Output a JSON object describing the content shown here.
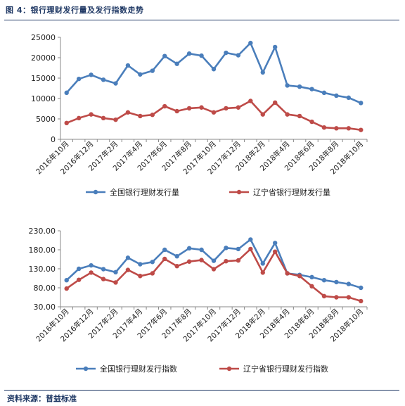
{
  "caption": "图 4：银行理财发行量及发行指数走势",
  "source": "资料来源：普益标准",
  "colors": {
    "series1": "#4a7ebb",
    "series2": "#be4b48",
    "axis": "#888888"
  },
  "chart_data": [
    {
      "type": "line",
      "categories": [
        "2016年10月",
        "2016年11月",
        "2016年12月",
        "2017年1月",
        "2017年2月",
        "2017年3月",
        "2017年4月",
        "2017年5月",
        "2017年6月",
        "2017年7月",
        "2017年8月",
        "2017年9月",
        "2017年10月",
        "2017年11月",
        "2017年12月",
        "2018年1月",
        "2018年2月",
        "2018年3月",
        "2018年4月",
        "2018年5月",
        "2018年6月",
        "2018年7月",
        "2018年8月",
        "2018年9月",
        "2018年10月"
      ],
      "tick_labels": [
        "2016年10月",
        "2016年12月",
        "2017年2月",
        "2017年4月",
        "2017年6月",
        "2017年8月",
        "2017年10月",
        "2017年12月",
        "2018年2月",
        "2018年4月",
        "2018年6月",
        "2018年8月",
        "2018年10月"
      ],
      "y_ticks": [
        "0",
        "5000",
        "10000",
        "15000",
        "20000",
        "25000"
      ],
      "ylim": [
        0,
        25000
      ],
      "grid": false,
      "legend": "bottom",
      "series": [
        {
          "name": "全国银行理财发行量",
          "values": [
            11400,
            14800,
            15800,
            14600,
            13700,
            18100,
            15900,
            16800,
            20400,
            18500,
            21000,
            20500,
            17200,
            21200,
            20600,
            23600,
            16400,
            22600,
            13200,
            12900,
            12300,
            11400,
            10700,
            10200,
            8900
          ]
        },
        {
          "name": "辽宁省银行理财发行量",
          "values": [
            4000,
            5200,
            6100,
            5200,
            4800,
            6600,
            5700,
            6000,
            8100,
            6900,
            7600,
            7800,
            6600,
            7600,
            7800,
            9400,
            6100,
            9000,
            6100,
            5700,
            4300,
            2900,
            2700,
            2700,
            2300
          ]
        }
      ]
    },
    {
      "type": "line",
      "categories": [
        "2016年10月",
        "2016年11月",
        "2016年12月",
        "2017年1月",
        "2017年2月",
        "2017年3月",
        "2017年4月",
        "2017年5月",
        "2017年6月",
        "2017年7月",
        "2017年8月",
        "2017年9月",
        "2017年10月",
        "2017年11月",
        "2017年12月",
        "2018年1月",
        "2018年2月",
        "2018年3月",
        "2018年4月",
        "2018年5月",
        "2018年6月",
        "2018年7月",
        "2018年8月",
        "2018年9月",
        "2018年10月"
      ],
      "tick_labels": [
        "2016年10月",
        "2016年12月",
        "2017年2月",
        "2017年4月",
        "2017年6月",
        "2017年8月",
        "2017年10月",
        "2017年12月",
        "2018年2月",
        "2018年4月",
        "2018年6月",
        "2018年8月",
        "2018年10月"
      ],
      "y_ticks": [
        "30.00",
        "80.00",
        "130.00",
        "180.00",
        "230.00"
      ],
      "ylim": [
        30,
        230
      ],
      "grid": false,
      "legend": "bottom",
      "series": [
        {
          "name": "全国银行理财发行指数",
          "values": [
            100,
            130,
            139,
            129,
            121,
            159,
            142,
            148,
            180,
            163,
            184,
            180,
            151,
            185,
            182,
            207,
            144,
            198,
            118,
            114,
            108,
            100,
            95,
            90,
            80
          ]
        },
        {
          "name": "辽宁省银行理财发行指数",
          "values": [
            78,
            101,
            120,
            103,
            94,
            127,
            111,
            118,
            156,
            137,
            149,
            153,
            129,
            150,
            152,
            182,
            120,
            175,
            118,
            111,
            84,
            58,
            55,
            55,
            45
          ]
        }
      ]
    }
  ]
}
